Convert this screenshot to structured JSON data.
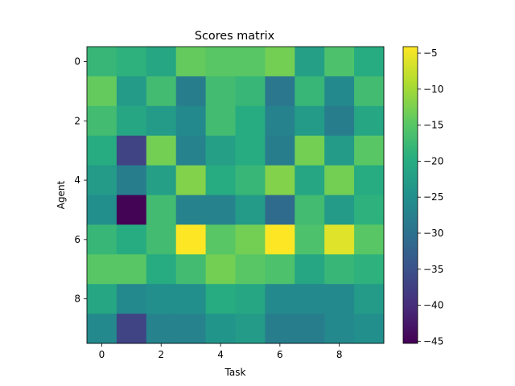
{
  "chart_data": {
    "type": "heatmap",
    "title": "Scores matrix",
    "xlabel": "Task",
    "ylabel": "Agent",
    "x_ticks": [
      0,
      2,
      4,
      6,
      8
    ],
    "y_ticks": [
      0,
      2,
      4,
      6,
      8
    ],
    "colorbar": {
      "colormap": "viridis",
      "vmin": -45.3,
      "vmax": -4.1,
      "ticks": [
        -5,
        -10,
        -15,
        -20,
        -25,
        -30,
        -35,
        -40,
        -45
      ]
    },
    "grid": false,
    "values": [
      [
        -18,
        -19,
        -21,
        -14,
        -15,
        -15,
        -13,
        -22,
        -16,
        -20
      ],
      [
        -14,
        -23,
        -17,
        -28,
        -17,
        -18,
        -29,
        -18,
        -26,
        -17
      ],
      [
        -17,
        -21,
        -23,
        -26,
        -17,
        -20,
        -27,
        -23,
        -28,
        -21
      ],
      [
        -20,
        -37,
        -13,
        -27,
        -22,
        -20,
        -28,
        -13,
        -23,
        -15
      ],
      [
        -23,
        -28,
        -22,
        -12,
        -20,
        -18,
        -12,
        -21,
        -13,
        -20
      ],
      [
        -25,
        -45,
        -17,
        -27,
        -27,
        -23,
        -31,
        -17,
        -23,
        -19
      ],
      [
        -18,
        -20,
        -17,
        -4,
        -15,
        -13,
        -4,
        -16,
        -6,
        -15
      ],
      [
        -15,
        -15,
        -20,
        -17,
        -13,
        -15,
        -16,
        -21,
        -18,
        -19
      ],
      [
        -21,
        -26,
        -25,
        -25,
        -20,
        -21,
        -26,
        -26,
        -26,
        -23
      ],
      [
        -26,
        -37,
        -27,
        -27,
        -24,
        -23,
        -28,
        -28,
        -26,
        -25
      ]
    ]
  }
}
